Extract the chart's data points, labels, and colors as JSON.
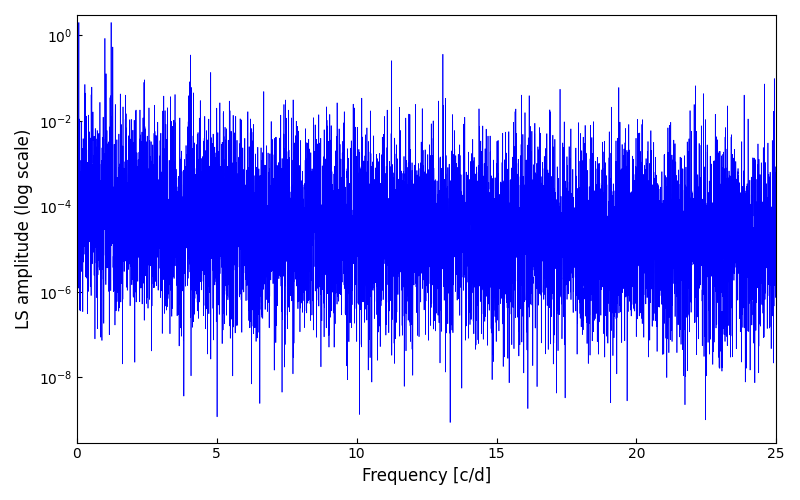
{
  "xlabel": "Frequency [c/d]",
  "ylabel": "LS amplitude (log scale)",
  "line_color": "#0000ff",
  "xlim": [
    0,
    25
  ],
  "ylim": [
    3e-10,
    3.0
  ],
  "yticks": [
    1e-08,
    1e-06,
    0.0001,
    0.01,
    1.0
  ],
  "xticks": [
    0,
    5,
    10,
    15,
    20,
    25
  ],
  "background_color": "#ffffff",
  "line_width": 0.5,
  "seed": 12345,
  "n_points": 8000,
  "freq_max": 25.0
}
